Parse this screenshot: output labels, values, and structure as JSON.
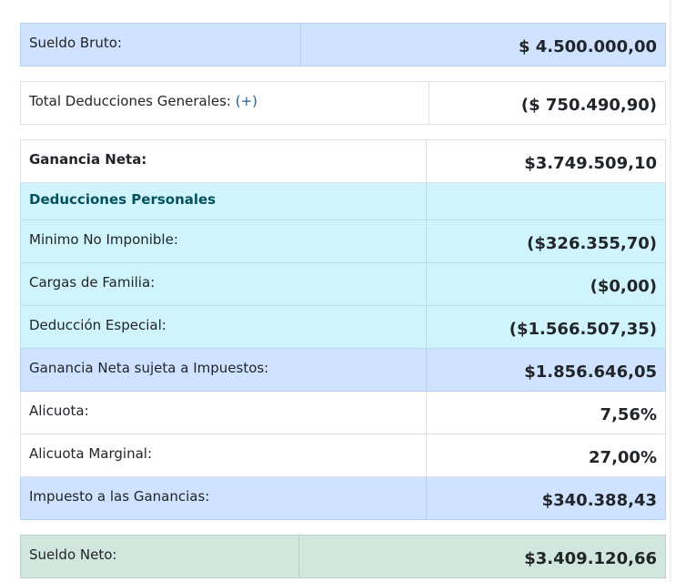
{
  "tables": [
    {
      "rows": [
        [
          "Sueldo Bruto:",
          "$ 4.500.000,00"
        ]
      ]
    },
    {
      "rows": [
        [
          "Total Deducciones Generales:",
          "($ 750.490,90)"
        ]
      ],
      "toggle": "(+)"
    },
    {
      "rows": [
        [
          "Ganancia Neta:",
          "$3.749.509,10"
        ],
        [
          "Deducciones Personales"
        ],
        [
          "Minimo No Imponible:",
          "($326.355,70)"
        ],
        [
          "Cargas de Familia:",
          "($0,00)"
        ],
        [
          "Deducción Especial:",
          "($1.566.507,35)"
        ],
        [
          "Ganancia Neta sujeta a Impuestos:",
          "$1.856.646,05"
        ],
        [
          "Alicuota:",
          "7,56%"
        ],
        [
          "Alicuota Marginal:",
          "27,00%"
        ],
        [
          "Impuesto a las Ganancias:",
          "$340.388,43"
        ]
      ]
    },
    {
      "rows": [
        [
          "Sueldo Neto:",
          "$3.409.120,66"
        ]
      ]
    }
  ]
}
